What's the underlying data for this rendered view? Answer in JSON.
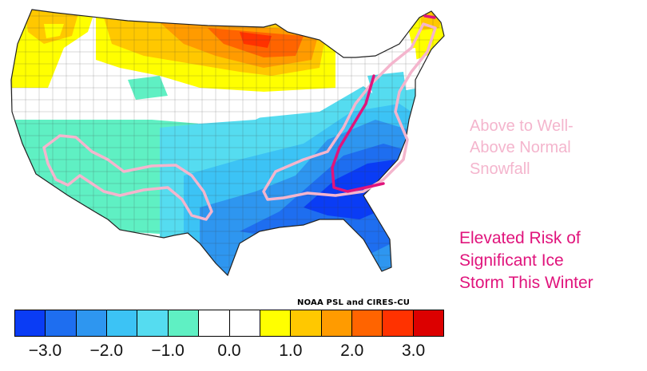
{
  "map": {
    "region": "Contiguous United States",
    "credit": "NOAA PSL and CIRES-CU"
  },
  "colorbar": {
    "colors": [
      "#0a3cf5",
      "#1e6ef0",
      "#2e96f0",
      "#3cc3f5",
      "#55dcf0",
      "#5ff0c3",
      "#ffffff",
      "#ffffff",
      "#ffff00",
      "#ffc800",
      "#ff9b00",
      "#ff6400",
      "#ff3200",
      "#dc0000"
    ],
    "ticks": [
      "−3.0",
      "−2.0",
      "−1.0",
      "0.0",
      "1.0",
      "2.0",
      "3.0"
    ]
  },
  "annotations": {
    "snowfall": {
      "lines": [
        "Above to Well-",
        "Above Normal",
        "Snowfall"
      ],
      "color": "#f4b5cd"
    },
    "ice_storm": {
      "lines": [
        "Elevated Risk of",
        "Significant Ice",
        "Storm This Winter"
      ],
      "color": "#e0147c"
    }
  }
}
